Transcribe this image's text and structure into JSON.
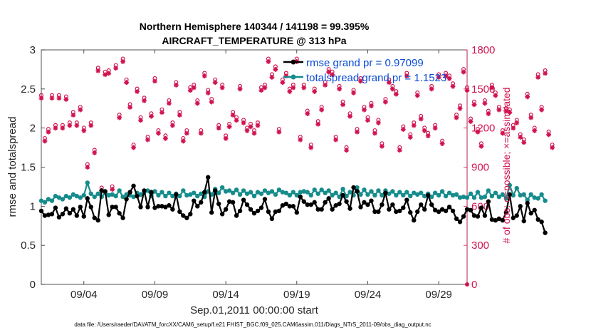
{
  "chart_data": {
    "type": "line",
    "title": "Northern Hemisphere 140344 / 141198 = 99.395%",
    "subtitle": "AIRCRAFT_TEMPERATURE @ 313 hPa",
    "xlabel": "Sep.01,2011 00:00:00 start",
    "ylabel_left": "rmse and totalspread",
    "ylabel_right": "# of obs: o=possible; ×=assimilated",
    "footer": "data file: /Users/raeder/DAI/ATM_forcXX/CAM6_setup/f.e21.FHIST_BGC.f09_025.CAM6assim.011/Diags_NTrS_2011-09/obs_diag_output.nc",
    "xlim": [
      1.0,
      31.0
    ],
    "ylim_left": [
      0,
      3
    ],
    "ylim_right": [
      0,
      1800
    ],
    "x_ticks": [
      4,
      9,
      14,
      19,
      24,
      29
    ],
    "x_tick_labels": [
      "09/04",
      "09/09",
      "09/14",
      "09/19",
      "09/24",
      "09/29"
    ],
    "y_ticks_left": [
      0,
      0.5,
      1,
      1.5,
      2,
      2.5,
      3
    ],
    "y_tick_labels_left": [
      "0",
      "0.5",
      "1",
      "1.5",
      "2",
      "2.5",
      "3"
    ],
    "y_ticks_right": [
      0,
      300,
      600,
      900,
      1200,
      1500,
      1800
    ],
    "y_tick_labels_right": [
      "0",
      "300",
      "600",
      "900",
      "1200",
      "1500",
      "1800"
    ],
    "series": [
      {
        "name": "rmse",
        "legend": "rmse grand pr = 0.97099",
        "color": "#000000",
        "axis": "left",
        "values": [
          0.94,
          0.88,
          0.89,
          0.9,
          0.98,
          0.86,
          0.9,
          0.97,
          0.91,
          0.96,
          0.88,
          0.99,
          0.87,
          1.1,
          0.99,
          0.85,
          0.82,
          1.2,
          1.19,
          0.89,
          0.99,
          0.99,
          0.91,
          0.85,
          1.09,
          1.18,
          1.26,
          1.13,
          0.99,
          1.2,
          0.99,
          1.18,
          0.98,
          1.0,
          1.0,
          0.99,
          1.01,
          0.96,
          1.15,
          0.93,
          0.88,
          0.85,
          0.9,
          1.07,
          1.0,
          1.05,
          1.18,
          1.37,
          0.92,
          1.2,
          1.03,
          0.9,
          0.96,
          1.06,
          1.05,
          0.88,
          0.94,
          1.08,
          1.02,
          0.96,
          0.91,
          0.94,
          0.98,
          1.09,
          0.93,
          0.84,
          0.93,
          0.94,
          1.01,
          1.03,
          1.0,
          1.0,
          0.92,
          1.12,
          1.06,
          1.02,
          1.02,
          1.05,
          0.96,
          0.96,
          1.05,
          1.1,
          0.96,
          1.01,
          1.03,
          1.14,
          1.06,
          0.97,
          1.24,
          1.19,
          0.99,
          1.05,
          1.02,
          1.07,
          0.93,
          0.93,
          1.02,
          1.17,
          0.96,
          1.02,
          0.93,
          0.94,
          0.98,
          1.08,
          0.92,
          0.82,
          0.93,
          1.02,
          0.96,
          1.14,
          1.02,
          0.95,
          0.93,
          0.96,
          0.94,
          0.99,
          0.94,
          0.84,
          0.8,
          0.87,
          0.96,
          0.95,
          0.88,
          0.87,
          0.98,
          0.88,
          1.06,
          0.83,
          0.82,
          0.84,
          0.82,
          0.92,
          1.15,
          0.85,
          0.88,
          1.0,
          0.81,
          1.04,
          0.91,
          0.95,
          0.83,
          0.8,
          0.66
        ]
      },
      {
        "name": "totalspread",
        "legend": "totalspread grand pr = 1.1523",
        "color": "#168c8c",
        "axis": "left",
        "values": [
          1.07,
          1.05,
          1.09,
          1.07,
          1.13,
          1.11,
          1.09,
          1.13,
          1.11,
          1.15,
          1.13,
          1.11,
          1.14,
          1.3,
          1.16,
          1.12,
          1.16,
          1.12,
          1.17,
          1.14,
          1.15,
          1.13,
          1.2,
          1.12,
          1.15,
          1.14,
          1.12,
          1.17,
          1.15,
          1.18,
          1.2,
          1.13,
          1.19,
          1.14,
          1.18,
          1.13,
          1.17,
          1.13,
          1.16,
          1.13,
          1.2,
          1.14,
          1.15,
          1.17,
          1.13,
          1.16,
          1.12,
          1.19,
          1.15,
          1.22,
          1.17,
          1.24,
          1.19,
          1.2,
          1.17,
          1.21,
          1.15,
          1.2,
          1.16,
          1.18,
          1.13,
          1.18,
          1.16,
          1.2,
          1.17,
          1.19,
          1.15,
          1.21,
          1.18,
          1.17,
          1.14,
          1.18,
          1.14,
          1.18,
          1.19,
          1.18,
          1.14,
          1.21,
          1.16,
          1.21,
          1.17,
          1.2,
          1.14,
          1.17,
          1.12,
          1.22,
          1.13,
          1.18,
          1.14,
          1.24,
          1.15,
          1.21,
          1.15,
          1.19,
          1.14,
          1.2,
          1.14,
          1.2,
          1.16,
          1.19,
          1.14,
          1.18,
          1.14,
          1.18,
          1.13,
          1.17,
          1.15,
          1.17,
          1.13,
          1.16,
          1.12,
          1.17,
          1.14,
          1.19,
          1.13,
          1.17,
          1.14,
          1.15,
          1.11,
          1.12,
          1.11,
          1.16,
          1.11,
          1.18,
          1.11,
          1.12,
          1.2,
          1.13,
          1.17,
          1.12,
          1.15,
          1.1,
          1.27,
          1.14,
          1.23,
          1.14,
          1.15,
          1.08,
          1.15,
          1.11,
          1.1,
          1.15,
          1.07
        ]
      },
      {
        "name": "obs_possible",
        "legend": "o = possible",
        "color": "#d1144f",
        "axis": "right",
        "marker": "circle",
        "values": [
          1430,
          1100,
          1170,
          1430,
          1200,
          1430,
          1200,
          1420,
          1220,
          1300,
          1220,
          1340,
          1180,
          900,
          1220,
          1010,
          1640,
          720,
          1610,
          1620,
          730,
          1660,
          1280,
          1710,
          1550,
          1360,
          1050,
          1480,
          1260,
          1410,
          1110,
          1290,
          1560,
          1160,
          1320,
          1120,
          1390,
          1220,
          1530,
          1300,
          1100,
          1160,
          1490,
          1510,
          1390,
          1160,
          1600,
          1470,
          1400,
          1550,
          1200,
          1510,
          1120,
          1210,
          1300,
          1260,
          1500,
          1240,
          1180,
          1210,
          1160,
          1220,
          1490,
          1510,
          1710,
          1590,
          1650,
          1170,
          1550,
          1600,
          1480,
          1510,
          1710,
          1110,
          1510,
          1310,
          1050,
          1480,
          1230,
          1340,
          1530,
          1630,
          1610,
          1110,
          1500,
          1380,
          1030,
          1290,
          1470,
          1170,
          1560,
          1340,
          1260,
          1370,
          1160,
          1240,
          1060,
          1400,
          1550,
          1500,
          1460,
          1030,
          1190,
          1600,
          1130,
          1220,
          1450,
          1270,
          1180,
          1140,
          1500,
          1200,
          1590,
          1080,
          1600,
          1580,
          1520,
          1280,
          1350,
          1630,
          1490,
          1250,
          1380,
          1170,
          1060,
          1390,
          1310,
          1510,
          1450,
          1340,
          1160,
          1330,
          1320,
          1200,
          1240,
          1130,
          1090,
          1440,
          1280,
          1180,
          1590,
          1340,
          1620,
          1150,
          1050
        ]
      },
      {
        "name": "obs_assimilated",
        "legend": "× = assimilated",
        "color": "#d1144f",
        "axis": "right",
        "marker": "star",
        "values": [
          1430,
          1100,
          1170,
          1430,
          1200,
          1430,
          1200,
          1420,
          1220,
          1300,
          1220,
          1340,
          1180,
          900,
          1220,
          1010,
          1640,
          720,
          1610,
          1620,
          730,
          1660,
          1280,
          1710,
          1550,
          1360,
          1050,
          1480,
          1260,
          1410,
          1110,
          1290,
          1560,
          1160,
          1320,
          1120,
          1390,
          1220,
          1530,
          1300,
          1100,
          1160,
          1490,
          1510,
          1390,
          1160,
          1600,
          1470,
          1400,
          1550,
          1200,
          1510,
          1120,
          1210,
          1300,
          1260,
          1500,
          1240,
          1180,
          1210,
          1160,
          1220,
          1490,
          1510,
          1710,
          1590,
          1650,
          1170,
          1550,
          1600,
          1480,
          1510,
          1710,
          1110,
          1510,
          1310,
          1050,
          1480,
          1230,
          1340,
          1530,
          1630,
          1610,
          1110,
          1500,
          1380,
          1030,
          1290,
          1470,
          1170,
          1560,
          1340,
          1260,
          1370,
          1160,
          1240,
          1060,
          1400,
          1550,
          1500,
          1460,
          1030,
          1190,
          1600,
          1130,
          1220,
          1450,
          1270,
          1180,
          1140,
          1500,
          1200,
          1590,
          1080,
          1600,
          1580,
          1520,
          1280,
          1350,
          1630,
          1490,
          1250,
          1380,
          1170,
          1060,
          1390,
          1310,
          1510,
          1450,
          1340,
          1160,
          1330,
          1320,
          1200,
          1240,
          1130,
          1090,
          1440,
          1280,
          1180,
          1590,
          1340,
          1620,
          1150,
          1050
        ]
      }
    ],
    "legend_position": "top-right"
  }
}
